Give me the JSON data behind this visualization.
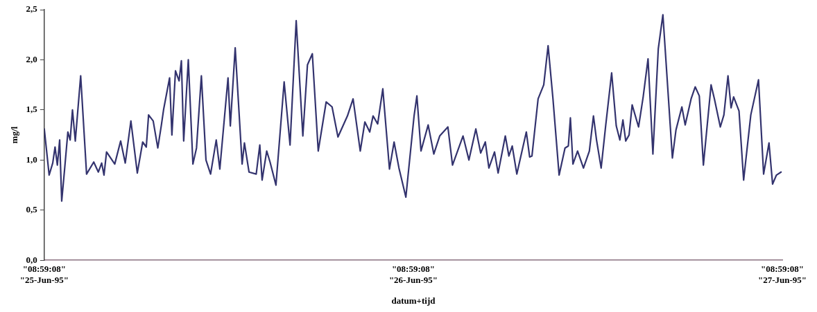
{
  "chart_data": {
    "type": "line",
    "xlabel": "datum+tijd",
    "ylabel": "mg/l",
    "color": "#33336e",
    "grid": false,
    "legend": false,
    "marker": "none",
    "line_style": "solid",
    "xlim": [
      "1995-06-25T08:59",
      "1995-06-27T08:59"
    ],
    "xticks": [
      {
        "value": "1995-06-25T08:59",
        "label": "\"08:59:08\"\n\"25-Jun-95\""
      },
      {
        "value": "1995-06-26T08:59",
        "label": "\"08:59:08\"\n\"26-Jun-95\""
      },
      {
        "value": "1995-06-27T08:59",
        "label": "\"08:59:08\"\n\"27-Jun-95\""
      }
    ],
    "ylim": [
      0,
      2.5
    ],
    "yticks": [
      {
        "value": 0,
        "label": "0,0"
      },
      {
        "value": 0.5,
        "label": "0,5"
      },
      {
        "value": 1,
        "label": "1,0"
      },
      {
        "value": 1.5,
        "label": "1,5"
      },
      {
        "value": 2,
        "label": "2,0"
      },
      {
        "value": 2.5,
        "label": "2,5"
      }
    ],
    "x": [
      "1995-06-25T08:59",
      "1995-06-25T09:18",
      "1995-06-25T09:32",
      "1995-06-25T09:41",
      "1995-06-25T09:50",
      "1995-06-25T09:59",
      "1995-06-25T10:07",
      "1995-06-25T10:18",
      "1995-06-25T10:31",
      "1995-06-25T10:40",
      "1995-06-25T10:49",
      "1995-06-25T11:00",
      "1995-06-25T11:21",
      "1995-06-25T11:44",
      "1995-06-25T12:12",
      "1995-06-25T12:30",
      "1995-06-25T12:43",
      "1995-06-25T12:52",
      "1995-06-25T13:02",
      "1995-06-25T13:34",
      "1995-06-25T13:57",
      "1995-06-25T14:15",
      "1995-06-25T14:37",
      "1995-06-25T15:02",
      "1995-06-25T15:23",
      "1995-06-25T15:37",
      "1995-06-25T15:46",
      "1995-06-25T16:04",
      "1995-06-25T16:22",
      "1995-06-25T16:36",
      "1995-06-25T16:45",
      "1995-06-25T17:08",
      "1995-06-25T17:17",
      "1995-06-25T17:31",
      "1995-06-25T17:45",
      "1995-06-25T17:54",
      "1995-06-25T18:03",
      "1995-06-25T18:21",
      "1995-06-25T18:39",
      "1995-06-25T18:53",
      "1995-06-25T19:12",
      "1995-06-25T19:30",
      "1995-06-25T19:48",
      "1995-06-25T20:10",
      "1995-06-25T20:24",
      "1995-06-25T20:56",
      "1995-06-25T21:05",
      "1995-06-25T21:24",
      "1995-06-25T21:51",
      "1995-06-25T22:00",
      "1995-06-25T22:18",
      "1995-06-25T22:46",
      "1995-06-25T23:00",
      "1995-06-25T23:09",
      "1995-06-25T23:27",
      "1995-06-25T23:40",
      "1995-06-26T00:03",
      "1995-06-26T00:35",
      "1995-06-26T00:58",
      "1995-06-26T01:22",
      "1995-06-26T01:48",
      "1995-06-26T02:06",
      "1995-06-26T02:25",
      "1995-06-26T02:48",
      "1995-06-26T03:19",
      "1995-06-26T03:42",
      "1995-06-26T04:05",
      "1995-06-26T04:42",
      "1995-06-26T05:04",
      "1995-06-26T05:32",
      "1995-06-26T05:50",
      "1995-06-26T06:09",
      "1995-06-26T06:22",
      "1995-06-26T06:40",
      "1995-06-26T07:00",
      "1995-06-26T07:26",
      "1995-06-26T07:44",
      "1995-06-26T08:03",
      "1995-06-26T08:30",
      "1995-06-26T09:02",
      "1995-06-26T09:13",
      "1995-06-26T09:29",
      "1995-06-26T09:57",
      "1995-06-26T10:19",
      "1995-06-26T10:42",
      "1995-06-26T11:14",
      "1995-06-26T11:32",
      "1995-06-26T12:13",
      "1995-06-26T12:36",
      "1995-06-26T13:03",
      "1995-06-26T13:22",
      "1995-06-26T13:40",
      "1995-06-26T13:54",
      "1995-06-26T14:16",
      "1995-06-26T14:30",
      "1995-06-26T14:58",
      "1995-06-26T15:12",
      "1995-06-26T15:25",
      "1995-06-26T15:43",
      "1995-06-26T16:20",
      "1995-06-26T16:33",
      "1995-06-26T16:42",
      "1995-06-26T17:06",
      "1995-06-26T17:28",
      "1995-06-26T17:45",
      "1995-06-26T18:04",
      "1995-06-26T18:28",
      "1995-06-26T18:51",
      "1995-06-26T19:04",
      "1995-06-26T19:12",
      "1995-06-26T19:22",
      "1995-06-26T19:40",
      "1995-06-26T20:03",
      "1995-06-26T20:26",
      "1995-06-26T20:42",
      "1995-06-26T20:54",
      "1995-06-26T21:12",
      "1995-06-26T21:30",
      "1995-06-26T21:53",
      "1995-06-26T22:11",
      "1995-06-26T22:25",
      "1995-06-26T22:37",
      "1995-06-26T22:48",
      "1995-06-26T23:01",
      "1995-06-26T23:13",
      "1995-06-26T23:38",
      "1995-06-26T23:56",
      "1995-06-27T00:15",
      "1995-06-27T00:34",
      "1995-06-27T00:55",
      "1995-06-27T01:13",
      "1995-06-27T01:50",
      "1995-06-27T02:04",
      "1995-06-27T02:27",
      "1995-06-27T02:40",
      "1995-06-27T03:03",
      "1995-06-27T03:19",
      "1995-06-27T03:35",
      "1995-06-27T03:51",
      "1995-06-27T04:21",
      "1995-06-27T04:34",
      "1995-06-27T04:57",
      "1995-06-27T05:11",
      "1995-06-27T05:27",
      "1995-06-27T05:39",
      "1995-06-27T05:49",
      "1995-06-27T06:10",
      "1995-06-27T06:28",
      "1995-06-27T06:56",
      "1995-06-27T07:26",
      "1995-06-27T07:46",
      "1995-06-27T08:07",
      "1995-06-27T08:21",
      "1995-06-27T08:36",
      "1995-06-27T08:54"
    ],
    "values": [
      1.31,
      0.85,
      0.97,
      1.13,
      0.95,
      1.2,
      0.59,
      0.9,
      1.28,
      1.2,
      1.5,
      1.19,
      1.84,
      0.86,
      0.98,
      0.88,
      0.97,
      0.85,
      1.08,
      0.96,
      1.19,
      0.97,
      1.39,
      0.87,
      1.18,
      1.13,
      1.45,
      1.39,
      1.12,
      1.35,
      1.51,
      1.82,
      1.25,
      1.89,
      1.79,
      1.99,
      1.19,
      2.0,
      0.96,
      1.12,
      1.84,
      1.0,
      0.86,
      1.2,
      0.91,
      1.82,
      1.34,
      2.12,
      0.96,
      1.17,
      0.88,
      0.86,
      1.15,
      0.8,
      1.09,
      0.98,
      0.75,
      1.78,
      1.15,
      2.39,
      1.24,
      1.95,
      2.06,
      1.09,
      1.58,
      1.53,
      1.23,
      1.44,
      1.61,
      1.09,
      1.38,
      1.28,
      1.44,
      1.36,
      1.71,
      0.91,
      1.18,
      0.92,
      0.63,
      1.44,
      1.64,
      1.09,
      1.35,
      1.06,
      1.24,
      1.33,
      0.95,
      1.24,
      1.0,
      1.31,
      1.07,
      1.18,
      0.92,
      1.08,
      0.87,
      1.24,
      1.04,
      1.14,
      0.86,
      1.28,
      1.03,
      1.04,
      1.61,
      1.75,
      2.14,
      1.61,
      0.85,
      1.12,
      1.14,
      1.42,
      0.96,
      1.09,
      0.92,
      1.09,
      1.44,
      1.2,
      0.92,
      1.35,
      1.87,
      1.34,
      1.2,
      1.4,
      1.19,
      1.25,
      1.55,
      1.33,
      1.63,
      2.01,
      1.06,
      2.11,
      2.45,
      1.02,
      1.3,
      1.53,
      1.35,
      1.61,
      1.73,
      1.64,
      0.95,
      1.75,
      1.61,
      1.33,
      1.45,
      1.84,
      1.52,
      1.63,
      1.49,
      0.8,
      1.45,
      1.8,
      0.86,
      1.17,
      0.76,
      0.85,
      0.88
    ]
  }
}
